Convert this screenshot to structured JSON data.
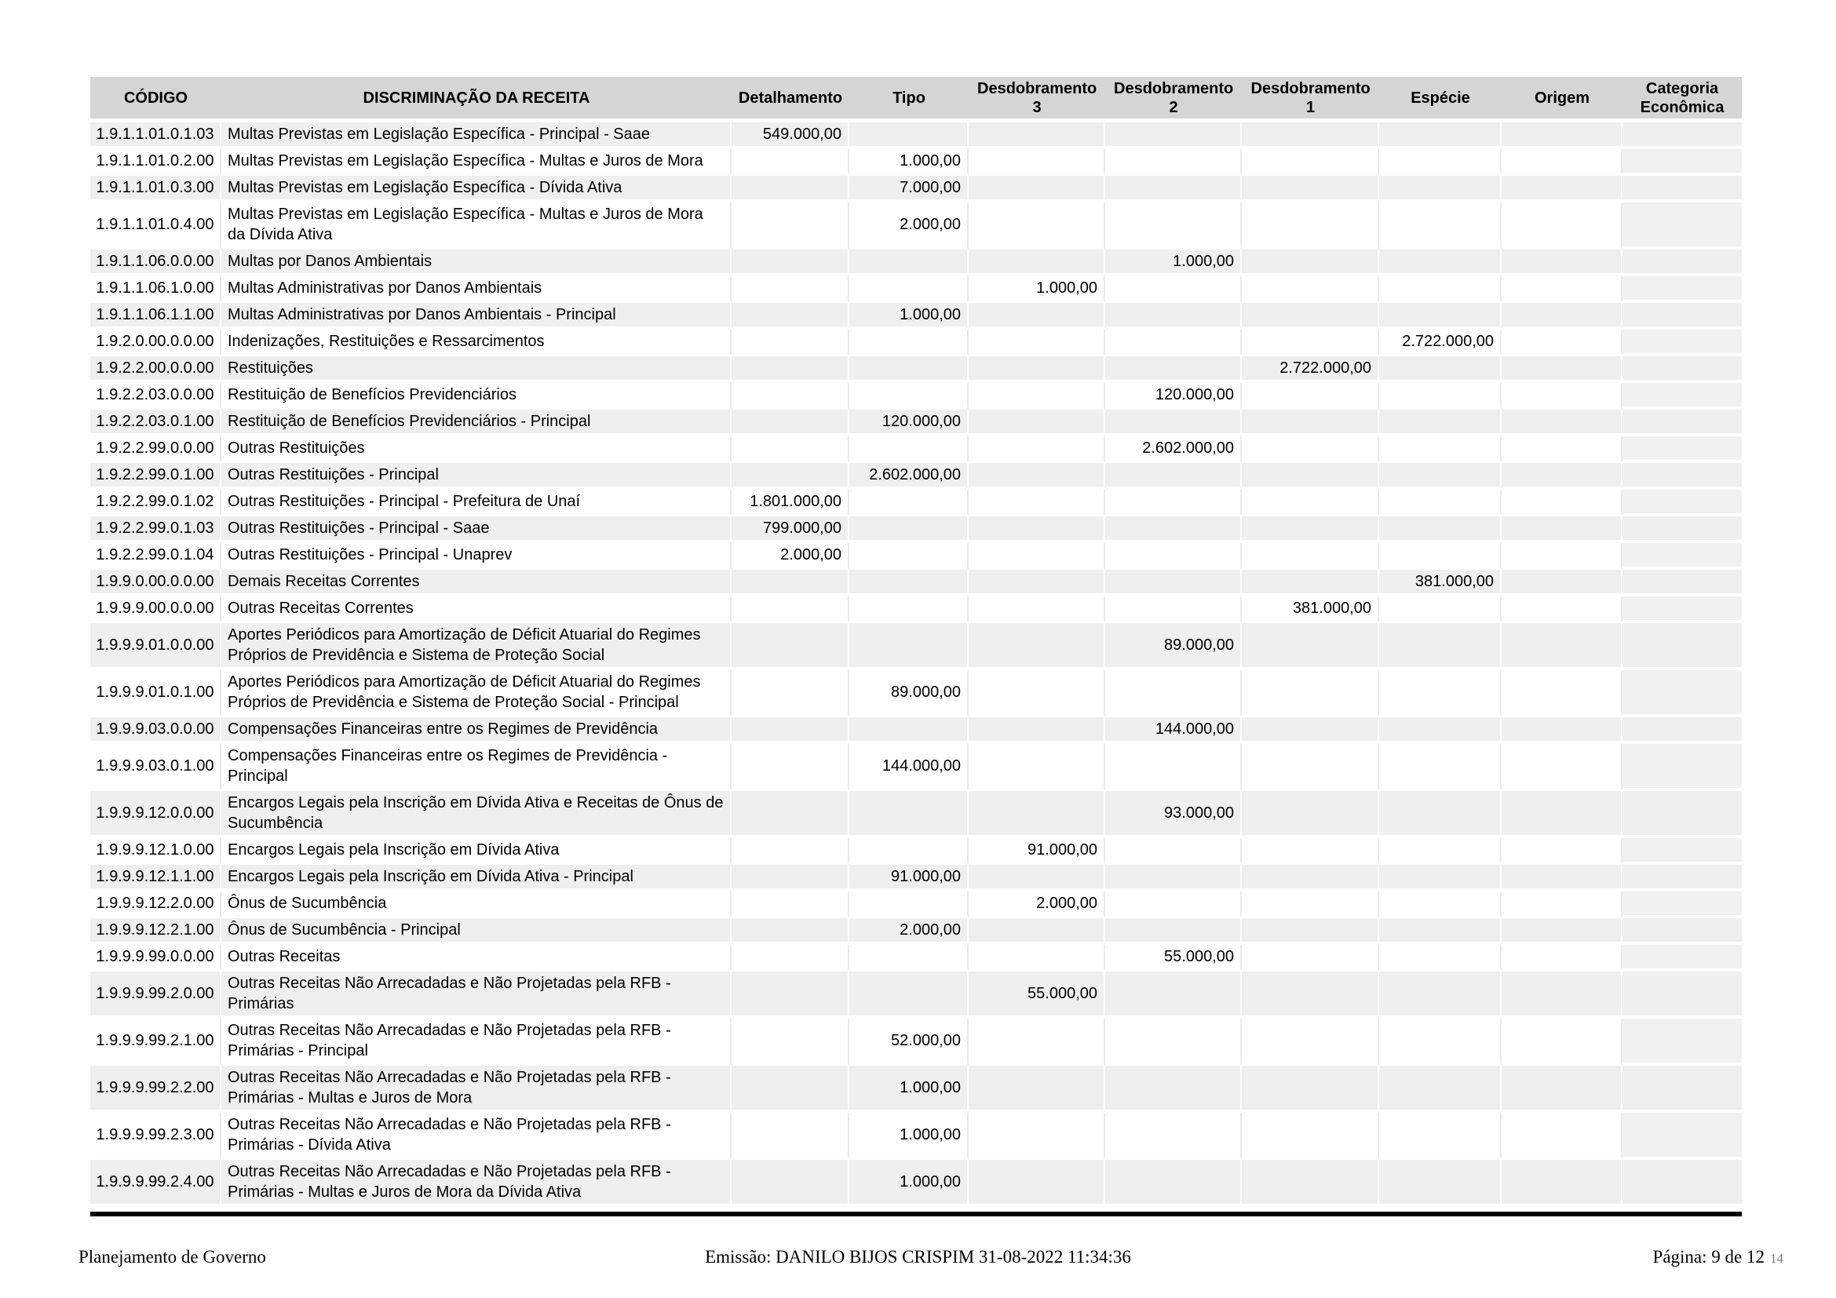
{
  "colors": {
    "header_bg": "#d5d5d5",
    "row_alt_bg": "#efefef",
    "last_col_tint": "#f1f1f1",
    "rule_color": "#000000"
  },
  "table": {
    "columns": [
      "CÓDIGO",
      "DISCRIMINAÇÃO DA RECEITA",
      "Detalhamento",
      "Tipo",
      "Desdobramento 3",
      "Desdobramento 2",
      "Desdobramento 1",
      "Espécie",
      "Origem",
      "Categoria Econômica"
    ],
    "rows": [
      {
        "code": "1.9.1.1.01.0.1.03",
        "description": "Multas Previstas em Legislação Específica - Principal - Saae",
        "detalhamento": "549.000,00"
      },
      {
        "code": "1.9.1.1.01.0.2.00",
        "description": "Multas Previstas em Legislação Específica - Multas e Juros de Mora",
        "tipo": "1.000,00"
      },
      {
        "code": "1.9.1.1.01.0.3.00",
        "description": "Multas Previstas em Legislação Específica - Dívida Ativa",
        "tipo": "7.000,00"
      },
      {
        "code": "1.9.1.1.01.0.4.00",
        "description": "Multas Previstas em Legislação Específica - Multas e Juros de Mora da Dívida Ativa",
        "tipo": "2.000,00"
      },
      {
        "code": "1.9.1.1.06.0.0.00",
        "description": "Multas por Danos Ambientais",
        "desdobramento_2": "1.000,00"
      },
      {
        "code": "1.9.1.1.06.1.0.00",
        "description": "Multas Administrativas por Danos Ambientais",
        "desdobramento_3": "1.000,00"
      },
      {
        "code": "1.9.1.1.06.1.1.00",
        "description": "Multas Administrativas por Danos Ambientais - Principal",
        "tipo": "1.000,00"
      },
      {
        "code": "1.9.2.0.00.0.0.00",
        "description": "Indenizações, Restituições e Ressarcimentos",
        "especie": "2.722.000,00"
      },
      {
        "code": "1.9.2.2.00.0.0.00",
        "description": "Restituições",
        "desdobramento_1": "2.722.000,00"
      },
      {
        "code": "1.9.2.2.03.0.0.00",
        "description": "Restituição de Benefícios Previdenciários",
        "desdobramento_2": "120.000,00"
      },
      {
        "code": "1.9.2.2.03.0.1.00",
        "description": "Restituição de Benefícios Previdenciários - Principal",
        "tipo": "120.000,00"
      },
      {
        "code": "1.9.2.2.99.0.0.00",
        "description": "Outras Restituições",
        "desdobramento_2": "2.602.000,00"
      },
      {
        "code": "1.9.2.2.99.0.1.00",
        "description": "Outras Restituições - Principal",
        "tipo": "2.602.000,00"
      },
      {
        "code": "1.9.2.2.99.0.1.02",
        "description": "Outras Restituições - Principal - Prefeitura de Unaí",
        "detalhamento": "1.801.000,00"
      },
      {
        "code": "1.9.2.2.99.0.1.03",
        "description": "Outras Restituições - Principal - Saae",
        "detalhamento": "799.000,00"
      },
      {
        "code": "1.9.2.2.99.0.1.04",
        "description": "Outras Restituições - Principal - Unaprev",
        "detalhamento": "2.000,00"
      },
      {
        "code": "1.9.9.0.00.0.0.00",
        "description": "Demais Receitas Correntes",
        "especie": "381.000,00"
      },
      {
        "code": "1.9.9.9.00.0.0.00",
        "description": "Outras Receitas Correntes",
        "desdobramento_1": "381.000,00"
      },
      {
        "code": "1.9.9.9.01.0.0.00",
        "description": "Aportes Periódicos para Amortização de Déficit Atuarial do Regimes Próprios de Previdência e Sistema de Proteção Social",
        "desdobramento_2": "89.000,00"
      },
      {
        "code": "1.9.9.9.01.0.1.00",
        "description": "Aportes Periódicos para Amortização de Déficit Atuarial do Regimes Próprios de Previdência e Sistema de Proteção Social - Principal",
        "tipo": "89.000,00"
      },
      {
        "code": "1.9.9.9.03.0.0.00",
        "description": "Compensações Financeiras entre os Regimes de Previdência",
        "desdobramento_2": "144.000,00"
      },
      {
        "code": "1.9.9.9.03.0.1.00",
        "description": "Compensações Financeiras entre os Regimes de Previdência - Principal",
        "tipo": "144.000,00"
      },
      {
        "code": "1.9.9.9.12.0.0.00",
        "description": "Encargos Legais pela Inscrição em Dívida Ativa e Receitas de Ônus de Sucumbência",
        "desdobramento_2": "93.000,00"
      },
      {
        "code": "1.9.9.9.12.1.0.00",
        "description": "Encargos Legais pela Inscrição em Dívida Ativa",
        "desdobramento_3": "91.000,00"
      },
      {
        "code": "1.9.9.9.12.1.1.00",
        "description": "Encargos Legais pela Inscrição em Dívida Ativa - Principal",
        "tipo": "91.000,00"
      },
      {
        "code": "1.9.9.9.12.2.0.00",
        "description": "Ônus de Sucumbência",
        "desdobramento_3": "2.000,00"
      },
      {
        "code": "1.9.9.9.12.2.1.00",
        "description": "Ônus de Sucumbência - Principal",
        "tipo": "2.000,00"
      },
      {
        "code": "1.9.9.9.99.0.0.00",
        "description": "Outras Receitas",
        "desdobramento_2": "55.000,00"
      },
      {
        "code": "1.9.9.9.99.2.0.00",
        "description": "Outras Receitas Não Arrecadadas e Não Projetadas pela RFB - Primárias",
        "desdobramento_3": "55.000,00"
      },
      {
        "code": "1.9.9.9.99.2.1.00",
        "description": "Outras Receitas Não Arrecadadas e Não Projetadas pela RFB - Primárias - Principal",
        "tipo": "52.000,00"
      },
      {
        "code": "1.9.9.9.99.2.2.00",
        "description": "Outras Receitas Não Arrecadadas e Não Projetadas pela RFB - Primárias - Multas e Juros de Mora",
        "tipo": "1.000,00"
      },
      {
        "code": "1.9.9.9.99.2.3.00",
        "description": "Outras Receitas Não Arrecadadas e Não Projetadas pela RFB - Primárias - Dívida Ativa",
        "tipo": "1.000,00"
      },
      {
        "code": "1.9.9.9.99.2.4.00",
        "description": "Outras Receitas Não Arrecadadas e Não Projetadas pela RFB - Primárias - Multas e Juros de Mora da Dívida Ativa",
        "tipo": "1.000,00"
      }
    ]
  },
  "footer": {
    "left": "Planejamento de Governo",
    "center": "Emissão: DANILO BIJOS CRISPIM 31-08-2022 11:34:36",
    "page_label": "Página: 9 de 12",
    "page_overlay": "14"
  }
}
